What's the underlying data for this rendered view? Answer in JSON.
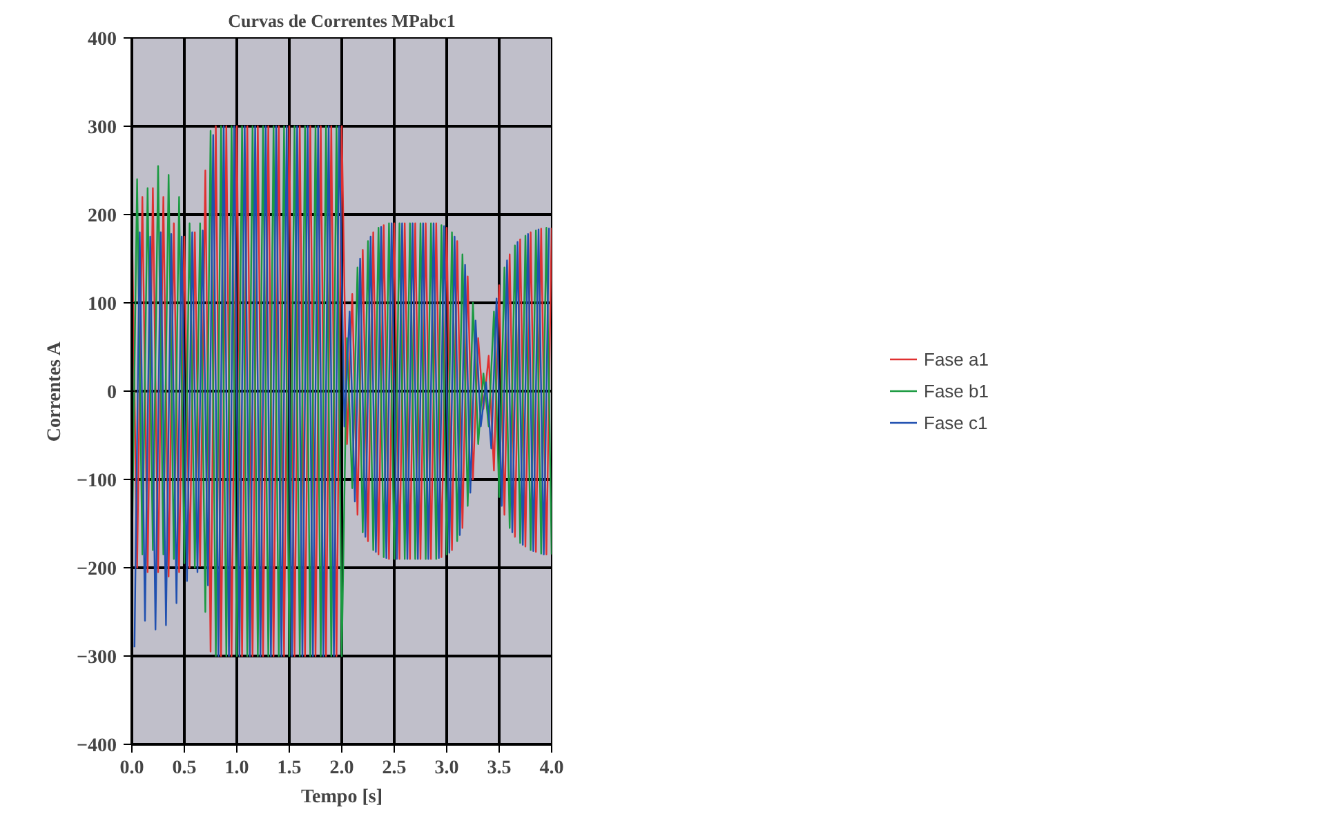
{
  "chart_data": {
    "type": "line",
    "title": "Curvas de Correntes MPabc1",
    "xlabel": "Tempo [s]",
    "ylabel": "Correntes A",
    "x": [
      0,
      0.05,
      0.1,
      0.15,
      0.2,
      0.25,
      0.3,
      0.35,
      0.4,
      0.45,
      0.5,
      0.55,
      0.6,
      0.65,
      0.7,
      0.75,
      0.8,
      0.85,
      0.9,
      0.95,
      1.0,
      1.05,
      1.1,
      1.15,
      1.2,
      1.25,
      1.3,
      1.35,
      1.4,
      1.45,
      1.5,
      1.55,
      1.6,
      1.65,
      1.7,
      1.75,
      1.8,
      1.85,
      1.9,
      1.95,
      2.0,
      2.05,
      2.1,
      2.15,
      2.2,
      2.25,
      2.3,
      2.35,
      2.4,
      2.45,
      2.5,
      2.55,
      2.6,
      2.65,
      2.7,
      2.75,
      2.8,
      2.85,
      2.9,
      2.95,
      3.0,
      3.05,
      3.1,
      3.15,
      3.2,
      3.25,
      3.3,
      3.35,
      3.4,
      3.45,
      3.5,
      3.55,
      3.6,
      3.65,
      3.7,
      3.75,
      3.8,
      3.85,
      3.9,
      3.95,
      4.0
    ],
    "series": [
      {
        "name": "Fase a1",
        "color": "#e03030",
        "values": [
          200,
          -200,
          220,
          -205,
          230,
          -205,
          220,
          -210,
          190,
          -205,
          175,
          -200,
          180,
          -198,
          250,
          -295,
          300,
          -300,
          300,
          -300,
          300,
          -300,
          300,
          -300,
          300,
          -300,
          300,
          -300,
          300,
          -300,
          300,
          -300,
          300,
          -300,
          300,
          -300,
          300,
          -300,
          300,
          -300,
          300,
          -60,
          110,
          -140,
          160,
          -170,
          180,
          -185,
          188,
          -190,
          190,
          -190,
          190,
          -190,
          190,
          -190,
          190,
          -190,
          190,
          -188,
          185,
          -180,
          170,
          -155,
          130,
          -100,
          60,
          -20,
          40,
          -90,
          120,
          -140,
          155,
          -165,
          172,
          -176,
          180,
          -182,
          184,
          -185,
          185
        ]
      },
      {
        "name": "Fase b1",
        "color": "#1a9a40",
        "values": [
          -190,
          240,
          -185,
          230,
          -180,
          255,
          -185,
          245,
          -190,
          220,
          -195,
          190,
          -200,
          190,
          -250,
          295,
          -300,
          300,
          -300,
          300,
          -300,
          300,
          -300,
          300,
          -300,
          300,
          -300,
          300,
          -300,
          300,
          -300,
          300,
          -300,
          300,
          -300,
          300,
          -300,
          300,
          -300,
          300,
          -300,
          60,
          -110,
          140,
          -160,
          170,
          -180,
          185,
          -188,
          190,
          -190,
          190,
          -190,
          190,
          -190,
          190,
          -190,
          190,
          -190,
          188,
          -185,
          180,
          -170,
          155,
          -130,
          100,
          -60,
          20,
          -40,
          90,
          -120,
          140,
          -155,
          165,
          -172,
          176,
          -180,
          182,
          -184,
          185,
          -185
        ]
      },
      {
        "name": "Fase c1",
        "color": "#2050b0",
        "x": [
          0.025,
          0.075,
          0.125,
          0.175,
          0.225,
          0.275,
          0.325,
          0.375,
          0.425,
          0.475,
          0.525,
          0.575,
          0.625,
          0.675,
          0.725,
          0.775,
          0.825,
          0.875,
          0.925,
          0.975,
          1.025,
          1.075,
          1.125,
          1.175,
          1.225,
          1.275,
          1.325,
          1.375,
          1.425,
          1.475,
          1.525,
          1.575,
          1.625,
          1.675,
          1.725,
          1.775,
          1.825,
          1.875,
          1.925,
          1.975,
          2.025,
          2.075,
          2.125,
          2.175,
          2.225,
          2.275,
          2.325,
          2.375,
          2.425,
          2.475,
          2.525,
          2.575,
          2.625,
          2.675,
          2.725,
          2.775,
          2.825,
          2.875,
          2.925,
          2.975,
          3.025,
          3.075,
          3.125,
          3.175,
          3.225,
          3.275,
          3.325,
          3.375,
          3.425,
          3.475,
          3.525,
          3.575,
          3.625,
          3.675,
          3.725,
          3.775,
          3.825,
          3.875,
          3.925,
          3.975
        ],
        "values": [
          -290,
          180,
          -260,
          175,
          -270,
          180,
          -265,
          178,
          -240,
          175,
          -215,
          180,
          -205,
          182,
          -220,
          290,
          -300,
          300,
          -300,
          300,
          -300,
          300,
          -300,
          300,
          -300,
          300,
          -300,
          300,
          -300,
          300,
          -300,
          300,
          -300,
          300,
          -300,
          300,
          -300,
          300,
          -300,
          300,
          -40,
          90,
          -125,
          150,
          -165,
          175,
          -182,
          186,
          -189,
          190,
          -190,
          190,
          -190,
          190,
          -190,
          190,
          -190,
          190,
          -189,
          187,
          -183,
          175,
          -163,
          143,
          -115,
          80,
          -40,
          10,
          -65,
          105,
          -130,
          148,
          -160,
          169,
          -174,
          178,
          -181,
          183,
          -185,
          185
        ]
      }
    ],
    "xlim": [
      0,
      4
    ],
    "ylim": [
      -400,
      400
    ],
    "xticks": [
      {
        "value": 0,
        "label": "0.0"
      },
      0.5,
      {
        "value": 1,
        "label": "1.0"
      },
      1.5,
      {
        "value": 2,
        "label": "2.0"
      },
      2.5,
      {
        "value": 3,
        "label": "3.0"
      },
      3.5,
      {
        "value": 4,
        "label": "4.0"
      }
    ],
    "yticks": [
      -400,
      -300,
      -200,
      -100,
      0,
      100,
      200,
      300,
      400
    ],
    "grid": true,
    "legend": "right",
    "marker": "none",
    "line_style": "solid"
  }
}
